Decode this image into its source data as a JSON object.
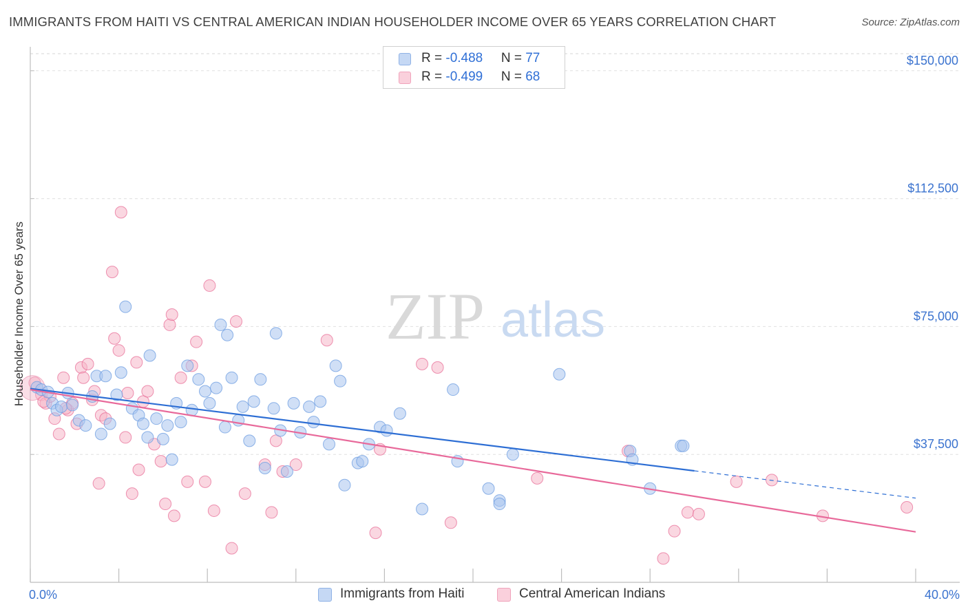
{
  "title": "IMMIGRANTS FROM HAITI VS CENTRAL AMERICAN INDIAN HOUSEHOLDER INCOME OVER 65 YEARS CORRELATION CHART",
  "source": "Source: ZipAtlas.com",
  "watermark": {
    "zip": "ZIP",
    "atlas": "atlas"
  },
  "legend_stats": [
    {
      "r_label": "R = ",
      "r_value": "-0.488",
      "n_label": "N = ",
      "n_value": "77",
      "color": "#a9c4ee"
    },
    {
      "r_label": "R = ",
      "r_value": "-0.499",
      "n_label": "N = ",
      "n_value": "68",
      "color": "#f5b6c9"
    }
  ],
  "chart_data": {
    "type": "scatter",
    "title": "IMMIGRANTS FROM HAITI VS CENTRAL AMERICAN INDIAN HOUSEHOLDER INCOME OVER 65 YEARS CORRELATION CHART",
    "xlabel": "",
    "ylabel": "Householder Income Over 65 years",
    "xlim": [
      0,
      40
    ],
    "ylim": [
      0,
      155000
    ],
    "x_tick_labels": [
      "0.0%",
      "40.0%"
    ],
    "y_ticks": [
      37500,
      75000,
      112500,
      150000
    ],
    "y_tick_labels": [
      "$37,500",
      "$75,000",
      "$112,500",
      "$150,000"
    ],
    "grid": true,
    "legend_position": "bottom",
    "series": [
      {
        "name": "Immigrants from Haiti",
        "color": "#6a9be0",
        "fill": "#a9c4ee",
        "trend": {
          "x": [
            0,
            30
          ],
          "y": [
            56800,
            32700
          ],
          "dashed_to": [
            40,
            24700
          ]
        },
        "points": [
          [
            0.3,
            57200
          ],
          [
            0.5,
            56500
          ],
          [
            0.8,
            55800
          ],
          [
            1.0,
            52500
          ],
          [
            1.2,
            50500
          ],
          [
            1.4,
            51500
          ],
          [
            1.7,
            55500
          ],
          [
            1.9,
            52000
          ],
          [
            2.2,
            47500
          ],
          [
            2.5,
            46000
          ],
          [
            2.8,
            54500
          ],
          [
            3.0,
            60500
          ],
          [
            3.2,
            43500
          ],
          [
            3.4,
            60500
          ],
          [
            3.6,
            46500
          ],
          [
            3.9,
            55000
          ],
          [
            4.1,
            61500
          ],
          [
            4.3,
            80800
          ],
          [
            4.6,
            51000
          ],
          [
            4.9,
            49000
          ],
          [
            5.1,
            46500
          ],
          [
            5.3,
            42500
          ],
          [
            5.4,
            66500
          ],
          [
            5.7,
            48000
          ],
          [
            6.0,
            42000
          ],
          [
            6.2,
            46000
          ],
          [
            6.4,
            36000
          ],
          [
            6.6,
            52500
          ],
          [
            6.8,
            47000
          ],
          [
            7.1,
            63500
          ],
          [
            7.3,
            50500
          ],
          [
            7.6,
            59500
          ],
          [
            7.9,
            56000
          ],
          [
            8.1,
            52500
          ],
          [
            8.4,
            57000
          ],
          [
            8.6,
            75500
          ],
          [
            8.8,
            45500
          ],
          [
            8.9,
            72500
          ],
          [
            9.1,
            60000
          ],
          [
            9.4,
            47500
          ],
          [
            9.6,
            51500
          ],
          [
            9.9,
            41500
          ],
          [
            10.1,
            53000
          ],
          [
            10.4,
            59500
          ],
          [
            10.6,
            33500
          ],
          [
            11.0,
            51000
          ],
          [
            11.1,
            73000
          ],
          [
            11.3,
            44500
          ],
          [
            11.6,
            32500
          ],
          [
            11.9,
            52500
          ],
          [
            12.2,
            44000
          ],
          [
            12.6,
            51500
          ],
          [
            12.8,
            47000
          ],
          [
            13.1,
            53000
          ],
          [
            13.5,
            40500
          ],
          [
            13.8,
            63500
          ],
          [
            14.0,
            59000
          ],
          [
            14.2,
            28500
          ],
          [
            14.8,
            35000
          ],
          [
            15.0,
            35500
          ],
          [
            15.3,
            40500
          ],
          [
            15.8,
            45500
          ],
          [
            16.1,
            44500
          ],
          [
            16.7,
            49500
          ],
          [
            17.7,
            21500
          ],
          [
            19.1,
            56500
          ],
          [
            19.3,
            35500
          ],
          [
            20.7,
            27500
          ],
          [
            21.2,
            24000
          ],
          [
            21.2,
            23000
          ],
          [
            21.8,
            37500
          ],
          [
            23.9,
            61000
          ],
          [
            27.1,
            38500
          ],
          [
            27.2,
            36000
          ],
          [
            28.0,
            27500
          ],
          [
            29.4,
            40000
          ],
          [
            29.5,
            40000
          ]
        ]
      },
      {
        "name": "Central American Indians",
        "color": "#e86d97",
        "fill": "#f5b6c9",
        "trend": {
          "x": [
            0,
            40
          ],
          "y": [
            56500,
            14800
          ]
        },
        "points": [
          [
            0.2,
            58500
          ],
          [
            0.5,
            55000
          ],
          [
            0.7,
            52500
          ],
          [
            0.9,
            54500
          ],
          [
            1.1,
            48000
          ],
          [
            1.3,
            43500
          ],
          [
            1.5,
            60000
          ],
          [
            1.7,
            50500
          ],
          [
            1.9,
            52500
          ],
          [
            2.1,
            46500
          ],
          [
            2.3,
            63000
          ],
          [
            2.4,
            60000
          ],
          [
            2.6,
            64000
          ],
          [
            2.8,
            53500
          ],
          [
            2.9,
            56000
          ],
          [
            3.1,
            29000
          ],
          [
            3.2,
            49000
          ],
          [
            3.4,
            48000
          ],
          [
            3.7,
            91000
          ],
          [
            3.8,
            71500
          ],
          [
            4.0,
            68000
          ],
          [
            4.1,
            108500
          ],
          [
            4.3,
            42500
          ],
          [
            4.4,
            55500
          ],
          [
            4.6,
            26000
          ],
          [
            4.8,
            64500
          ],
          [
            4.9,
            33000
          ],
          [
            5.1,
            53000
          ],
          [
            5.3,
            56000
          ],
          [
            5.6,
            40500
          ],
          [
            5.9,
            35500
          ],
          [
            6.1,
            23000
          ],
          [
            6.3,
            75500
          ],
          [
            6.4,
            78500
          ],
          [
            6.5,
            19500
          ],
          [
            6.8,
            60000
          ],
          [
            7.1,
            29500
          ],
          [
            7.3,
            63500
          ],
          [
            7.5,
            70500
          ],
          [
            7.9,
            29500
          ],
          [
            8.1,
            87000
          ],
          [
            8.3,
            21000
          ],
          [
            9.1,
            10000
          ],
          [
            9.3,
            76500
          ],
          [
            9.7,
            26000
          ],
          [
            10.6,
            34500
          ],
          [
            10.9,
            20500
          ],
          [
            11.1,
            41500
          ],
          [
            11.4,
            32500
          ],
          [
            12.0,
            34500
          ],
          [
            13.4,
            71000
          ],
          [
            15.6,
            14500
          ],
          [
            15.8,
            39000
          ],
          [
            17.7,
            64000
          ],
          [
            18.4,
            63000
          ],
          [
            19.0,
            17500
          ],
          [
            22.9,
            30500
          ],
          [
            27.0,
            38500
          ],
          [
            28.6,
            7000
          ],
          [
            29.1,
            15000
          ],
          [
            29.7,
            20500
          ],
          [
            30.2,
            20000
          ],
          [
            31.9,
            29500
          ],
          [
            33.5,
            30000
          ],
          [
            35.8,
            19500
          ],
          [
            39.6,
            22000
          ],
          [
            0.6,
            53000
          ],
          [
            1.6,
            51000
          ]
        ]
      }
    ]
  }
}
